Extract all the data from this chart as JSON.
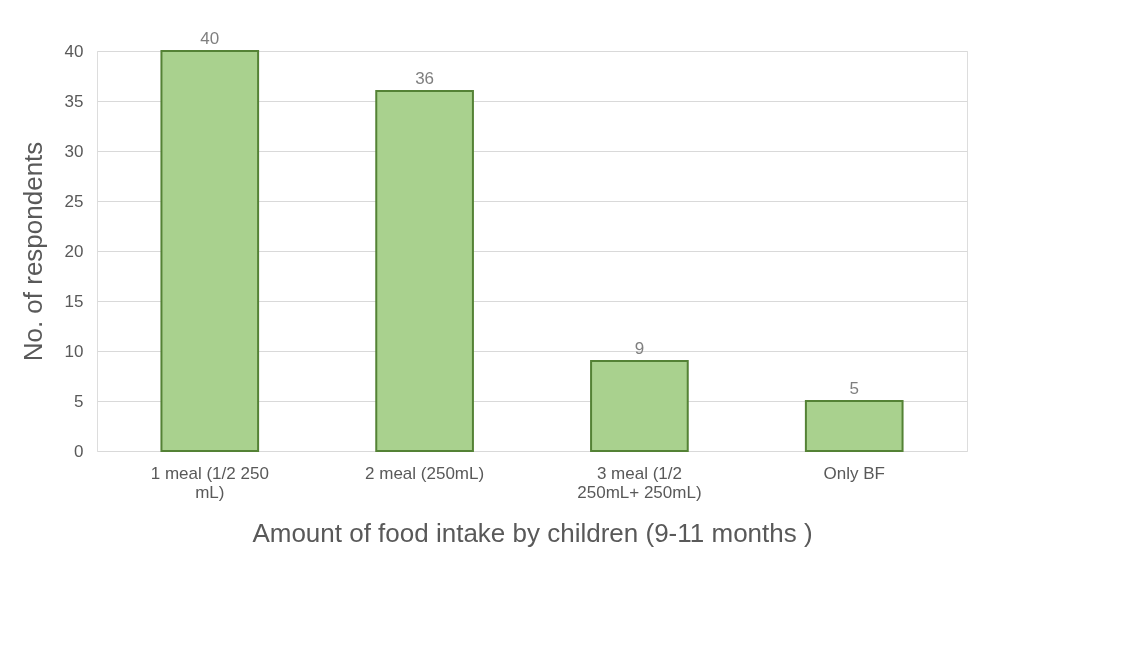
{
  "chart_data": {
    "type": "bar",
    "categories": [
      "1 meal (1/2 250 mL)",
      "2 meal (250mL)",
      "3 meal (1/2 250mL+ 250mL)",
      "Only BF"
    ],
    "values": [
      40,
      36,
      9,
      5
    ],
    "color": "#a9d18e",
    "xlabel": "Amount of food intake by children (9-11 months )",
    "ylabel": "No. of respondents",
    "ylim": [
      0,
      40
    ],
    "yticks": [
      0,
      5,
      10,
      15,
      20,
      25,
      30,
      35,
      40
    ],
    "grid": "y",
    "data_labels": true
  }
}
